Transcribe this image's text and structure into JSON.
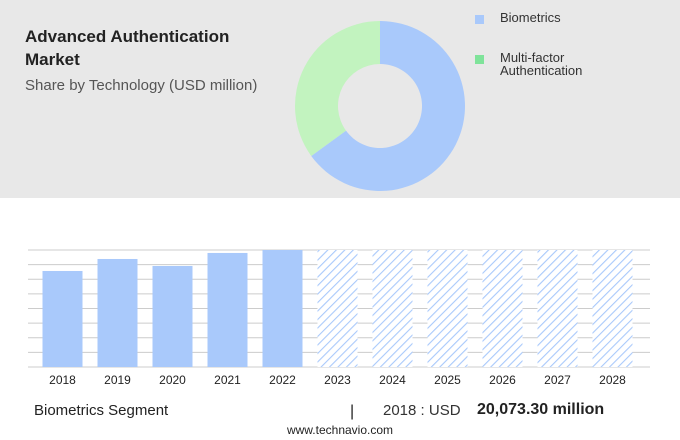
{
  "header": {
    "title": "Advanced Authentication Market",
    "subtitle": "Share by Technology (USD million)"
  },
  "chart_data": [
    {
      "type": "donut",
      "categories": [
        "Biometrics",
        "Multi-factor Authentication"
      ],
      "values": [
        65,
        35
      ],
      "colors": [
        "#a9c9fb",
        "#c2f3bf"
      ],
      "legend_colors": [
        "#a9c9fb",
        "#7fe39a"
      ]
    },
    {
      "type": "bar",
      "categories": [
        "2018",
        "2019",
        "2020",
        "2021",
        "2022",
        "2023",
        "2024",
        "2025",
        "2026",
        "2027",
        "2028"
      ],
      "values": [
        20073.3,
        22580,
        21120,
        23840,
        24460,
        null,
        null,
        null,
        null,
        null,
        null
      ],
      "value_labels": [
        "20,073.30 million",
        null,
        null,
        null,
        null,
        null,
        null,
        null,
        null,
        null,
        null
      ],
      "color": "#a9c9fb",
      "ylim": [
        0,
        24460
      ]
    }
  ],
  "footer": {
    "segment": "Biometrics Segment",
    "separator": "|",
    "year_text": "2018 : USD",
    "source": "www.technavio.com"
  }
}
